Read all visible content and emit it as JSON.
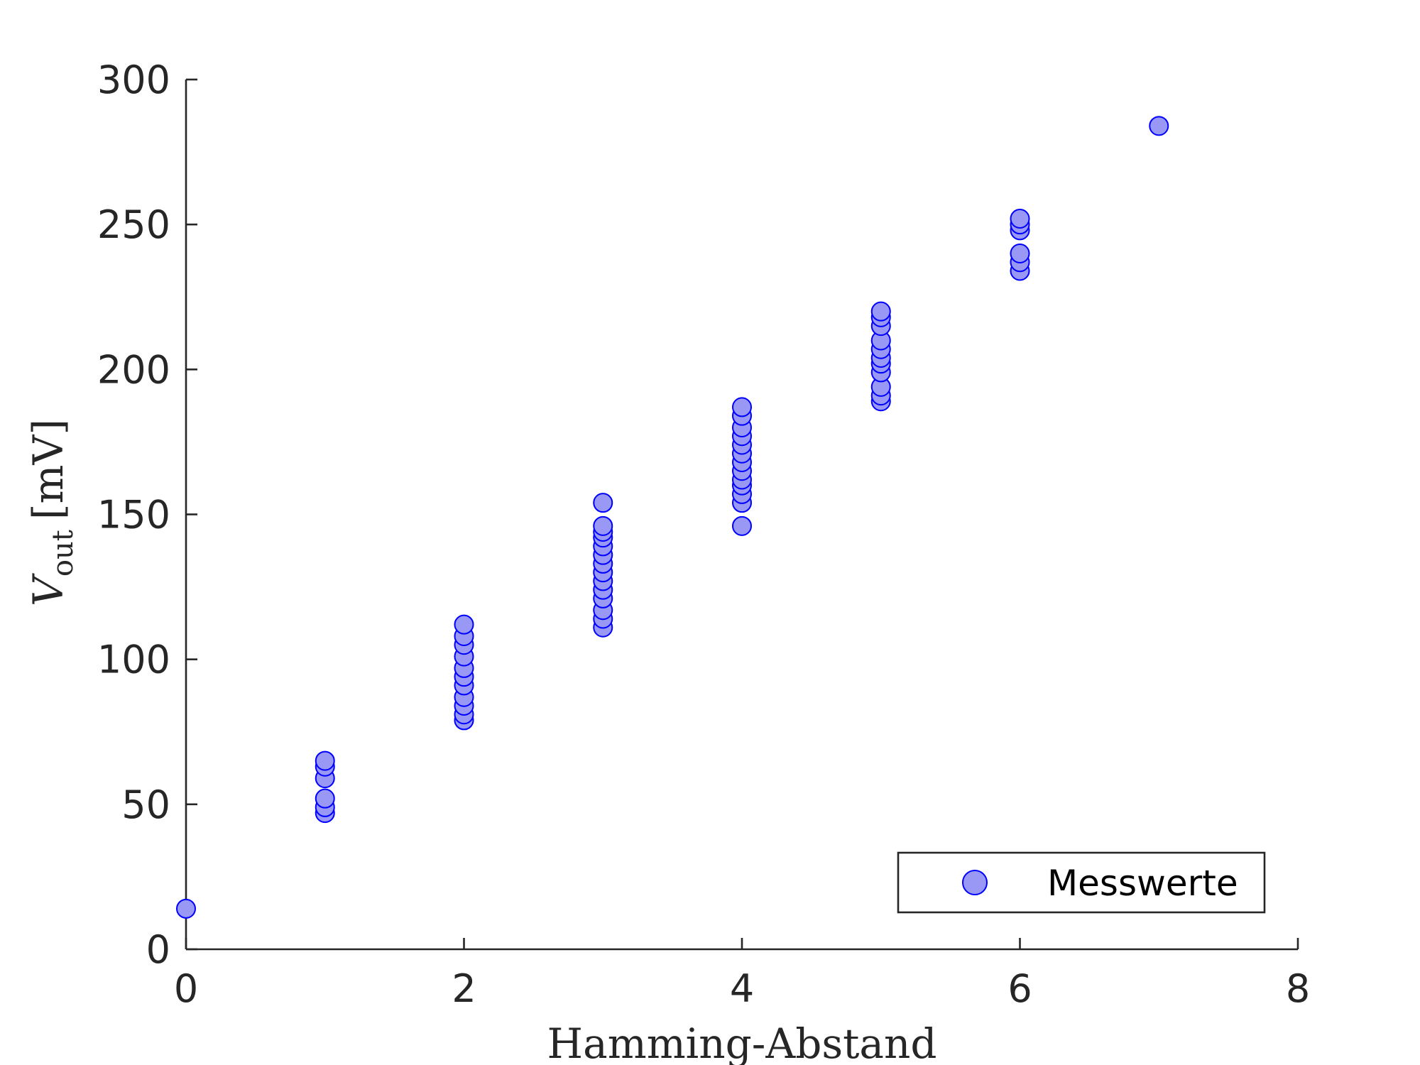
{
  "chart_data": {
    "type": "scatter",
    "title": "",
    "xlabel": "Hamming-Abstand",
    "ylabel": {
      "main": "V",
      "subscript": "out",
      "unit": "[mV]"
    },
    "xlim": [
      0,
      8
    ],
    "ylim": [
      0,
      300
    ],
    "xticks": [
      0,
      2,
      4,
      6,
      8
    ],
    "yticks": [
      0,
      50,
      100,
      150,
      200,
      250,
      300
    ],
    "xtick_labels": [
      "0",
      "2",
      "4",
      "6",
      "8"
    ],
    "ytick_labels": [
      "0",
      "50",
      "100",
      "150",
      "200",
      "250",
      "300"
    ],
    "grid": false,
    "legend": {
      "position": "bottom-right",
      "entries": [
        "Messwerte"
      ]
    },
    "series": [
      {
        "name": "Messwerte",
        "marker": "circle",
        "fill_color": "#9999f5",
        "edge_color": "#0000ff",
        "points": [
          {
            "x": 0,
            "y": 14
          },
          {
            "x": 1,
            "y": 47
          },
          {
            "x": 1,
            "y": 49
          },
          {
            "x": 1,
            "y": 52
          },
          {
            "x": 1,
            "y": 59
          },
          {
            "x": 1,
            "y": 63
          },
          {
            "x": 1,
            "y": 65
          },
          {
            "x": 2,
            "y": 79
          },
          {
            "x": 2,
            "y": 81
          },
          {
            "x": 2,
            "y": 84
          },
          {
            "x": 2,
            "y": 87
          },
          {
            "x": 2,
            "y": 91
          },
          {
            "x": 2,
            "y": 94
          },
          {
            "x": 2,
            "y": 97
          },
          {
            "x": 2,
            "y": 101
          },
          {
            "x": 2,
            "y": 105
          },
          {
            "x": 2,
            "y": 108
          },
          {
            "x": 2,
            "y": 112
          },
          {
            "x": 3,
            "y": 111
          },
          {
            "x": 3,
            "y": 114
          },
          {
            "x": 3,
            "y": 117
          },
          {
            "x": 3,
            "y": 121
          },
          {
            "x": 3,
            "y": 124
          },
          {
            "x": 3,
            "y": 127
          },
          {
            "x": 3,
            "y": 130
          },
          {
            "x": 3,
            "y": 133
          },
          {
            "x": 3,
            "y": 136
          },
          {
            "x": 3,
            "y": 139
          },
          {
            "x": 3,
            "y": 142
          },
          {
            "x": 3,
            "y": 144
          },
          {
            "x": 3,
            "y": 146
          },
          {
            "x": 3,
            "y": 154
          },
          {
            "x": 4,
            "y": 146
          },
          {
            "x": 4,
            "y": 154
          },
          {
            "x": 4,
            "y": 157
          },
          {
            "x": 4,
            "y": 160
          },
          {
            "x": 4,
            "y": 162
          },
          {
            "x": 4,
            "y": 165
          },
          {
            "x": 4,
            "y": 168
          },
          {
            "x": 4,
            "y": 171
          },
          {
            "x": 4,
            "y": 174
          },
          {
            "x": 4,
            "y": 177
          },
          {
            "x": 4,
            "y": 180
          },
          {
            "x": 4,
            "y": 184
          },
          {
            "x": 4,
            "y": 187
          },
          {
            "x": 5,
            "y": 189
          },
          {
            "x": 5,
            "y": 191
          },
          {
            "x": 5,
            "y": 194
          },
          {
            "x": 5,
            "y": 199
          },
          {
            "x": 5,
            "y": 202
          },
          {
            "x": 5,
            "y": 204
          },
          {
            "x": 5,
            "y": 207
          },
          {
            "x": 5,
            "y": 210
          },
          {
            "x": 5,
            "y": 215
          },
          {
            "x": 5,
            "y": 218
          },
          {
            "x": 5,
            "y": 220
          },
          {
            "x": 6,
            "y": 234
          },
          {
            "x": 6,
            "y": 237
          },
          {
            "x": 6,
            "y": 240
          },
          {
            "x": 6,
            "y": 248
          },
          {
            "x": 6,
            "y": 250
          },
          {
            "x": 6,
            "y": 252
          },
          {
            "x": 7,
            "y": 284
          }
        ]
      }
    ]
  }
}
